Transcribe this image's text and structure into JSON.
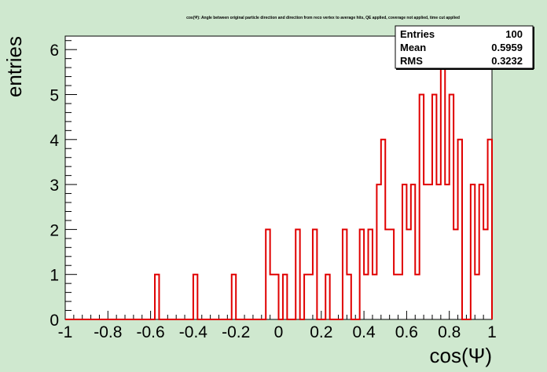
{
  "chart_data": {
    "type": "bar",
    "title": "cos(Ψ): Angle between original particle direction and direction from reco vertex to average hits, QE applied, coverage not applied, time cut applied",
    "xlabel": "cos(Ψ)",
    "ylabel": "entries",
    "xlim": [
      -1,
      1
    ],
    "ylim": [
      0,
      6.3
    ],
    "x_tick_labels": [
      "-1",
      "-0.8",
      "-0.6",
      "-0.4",
      "-0.2",
      "0",
      "0.2",
      "0.4",
      "0.6",
      "0.8",
      "1"
    ],
    "y_tick_labels": [
      "0",
      "1",
      "2",
      "3",
      "4",
      "5",
      "6"
    ],
    "bins": 100,
    "values": [
      0,
      0,
      0,
      0,
      0,
      0,
      0,
      0,
      0,
      0,
      0,
      0,
      0,
      0,
      0,
      0,
      0,
      0,
      0,
      0,
      0,
      1,
      0,
      0,
      0,
      0,
      0,
      0,
      0,
      0,
      1,
      0,
      0,
      0,
      0,
      0,
      0,
      0,
      0,
      1,
      0,
      0,
      0,
      0,
      0,
      0,
      0,
      2,
      1,
      1,
      0,
      1,
      0,
      0,
      2,
      0,
      1,
      1,
      2,
      0,
      0,
      1,
      0,
      0,
      0,
      2,
      1,
      0,
      0,
      2,
      1,
      2,
      1,
      3,
      4,
      2,
      2,
      1,
      1,
      3,
      2,
      3,
      1,
      5,
      3,
      3,
      5,
      3,
      6,
      3,
      5,
      2,
      4,
      0,
      0,
      3,
      1,
      3,
      2,
      4
    ],
    "line_color": "#e00000",
    "grid": false,
    "legend": "top-right",
    "stats": {
      "rows": [
        {
          "label": "Entries",
          "value": "100"
        },
        {
          "label": "Mean",
          "value": "0.5959"
        },
        {
          "label": "RMS",
          "value": "0.3232"
        }
      ]
    }
  }
}
